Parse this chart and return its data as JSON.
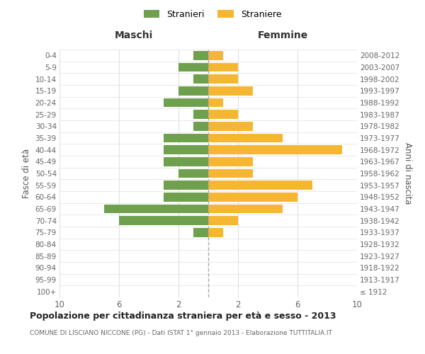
{
  "age_groups": [
    "100+",
    "95-99",
    "90-94",
    "85-89",
    "80-84",
    "75-79",
    "70-74",
    "65-69",
    "60-64",
    "55-59",
    "50-54",
    "45-49",
    "40-44",
    "35-39",
    "30-34",
    "25-29",
    "20-24",
    "15-19",
    "10-14",
    "5-9",
    "0-4"
  ],
  "birth_years": [
    "≤ 1912",
    "1913-1917",
    "1918-1922",
    "1923-1927",
    "1928-1932",
    "1933-1937",
    "1938-1942",
    "1943-1947",
    "1948-1952",
    "1953-1957",
    "1958-1962",
    "1963-1967",
    "1968-1972",
    "1973-1977",
    "1978-1982",
    "1983-1987",
    "1988-1992",
    "1993-1997",
    "1998-2002",
    "2003-2007",
    "2008-2012"
  ],
  "males": [
    0,
    0,
    0,
    0,
    0,
    1,
    6,
    7,
    3,
    3,
    2,
    3,
    3,
    3,
    1,
    1,
    3,
    2,
    1,
    2,
    1
  ],
  "females": [
    0,
    0,
    0,
    0,
    0,
    1,
    2,
    5,
    6,
    7,
    3,
    3,
    9,
    5,
    3,
    2,
    1,
    3,
    2,
    2,
    1
  ],
  "male_color": "#6fa04e",
  "female_color": "#f5b731",
  "title": "Popolazione per cittadinanza straniera per età e sesso - 2013",
  "subtitle": "COMUNE DI LISCIANO NICCONE (PG) - Dati ISTAT 1° gennaio 2013 - Elaborazione TUTTITALIA.IT",
  "legend_male": "Stranieri",
  "legend_female": "Straniere",
  "header_left": "Maschi",
  "header_right": "Femmine",
  "ylabel_left": "Fasce di età",
  "ylabel_right": "Anni di nascita",
  "xlim": 10,
  "background_color": "#ffffff",
  "grid_color": "#e0e0e0"
}
